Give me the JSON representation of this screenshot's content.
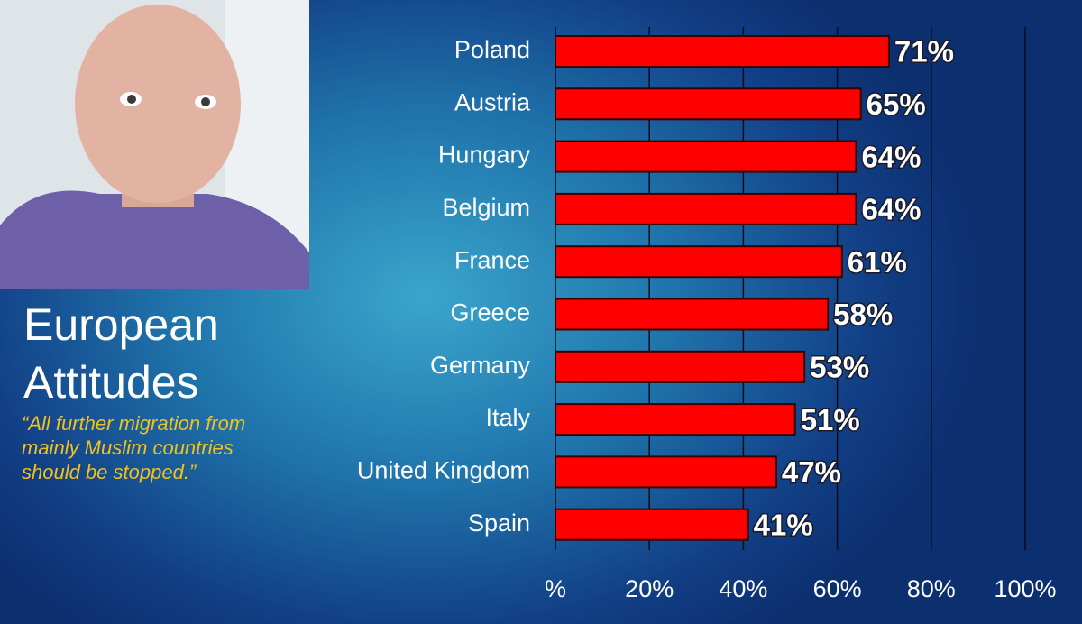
{
  "chart_data": {
    "type": "hbar",
    "title": "European Attitudes",
    "subtitle": "“All further migration from mainly Muslim countries should be stopped.”",
    "categories": [
      "Poland",
      "Austria",
      "Hungary",
      "Belgium",
      "France",
      "Greece",
      "Germany",
      "Italy",
      "United Kingdom",
      "Spain"
    ],
    "values": [
      71,
      65,
      64,
      64,
      61,
      58,
      53,
      51,
      47,
      41
    ],
    "value_labels": [
      "71%",
      "65%",
      "64%",
      "64%",
      "61%",
      "58%",
      "53%",
      "51%",
      "47%",
      "41%"
    ],
    "color": "#ff0000",
    "xlim": [
      0,
      100
    ],
    "xticks": [
      {
        "value": 0,
        "label": "%"
      },
      {
        "value": 20,
        "label": "20%"
      },
      {
        "value": 40,
        "label": "40%"
      },
      {
        "value": 60,
        "label": "60%"
      },
      {
        "value": 80,
        "label": "80%"
      },
      {
        "value": 100,
        "label": "100%"
      }
    ],
    "grid": true
  }
}
